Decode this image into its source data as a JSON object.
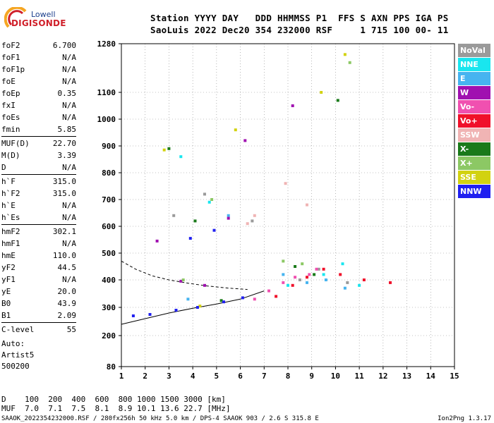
{
  "logo": {
    "top": "Lowell",
    "bottom": "DIGISONDE"
  },
  "header": {
    "line1": "Station YYYY DAY   DDD HHMMSS P1  FFS S AXN PPS IGA PS",
    "line2": "SaoLuis 2022 Dec20 354 232000 RSF     1 715 100 00- 11"
  },
  "params": [
    {
      "name": "foF2",
      "value": "6.700"
    },
    {
      "name": "foF1",
      "value": "N/A"
    },
    {
      "name": "foF1p",
      "value": "N/A"
    },
    {
      "name": "foE",
      "value": "N/A"
    },
    {
      "name": "foEp",
      "value": "0.35"
    },
    {
      "name": "fxI",
      "value": "N/A"
    },
    {
      "name": "foEs",
      "value": "N/A"
    },
    {
      "name": "fmin",
      "value": "5.85"
    },
    {
      "divider": true
    },
    {
      "name": "MUF(D)",
      "value": "22.70"
    },
    {
      "name": "M(D)",
      "value": "3.39"
    },
    {
      "name": "D",
      "value": "N/A"
    },
    {
      "divider": true
    },
    {
      "name": "h`F",
      "value": "315.0"
    },
    {
      "name": "h`F2",
      "value": "315.0"
    },
    {
      "name": "h`E",
      "value": "N/A"
    },
    {
      "name": "h`Es",
      "value": "N/A"
    },
    {
      "divider": true
    },
    {
      "name": "hmF2",
      "value": "302.1"
    },
    {
      "name": "hmF1",
      "value": "N/A"
    },
    {
      "name": "hmE",
      "value": "110.0"
    },
    {
      "name": "yF2",
      "value": "44.5"
    },
    {
      "name": "yF1",
      "value": "N/A"
    },
    {
      "name": "yE",
      "value": "20.0"
    },
    {
      "name": "B0",
      "value": "43.9"
    },
    {
      "name": "B1",
      "value": "2.09"
    },
    {
      "divider": true
    },
    {
      "name": "C-level",
      "value": "55"
    }
  ],
  "auto": {
    "line1": "Auto:",
    "line2": "Artist5",
    "line3": "500200"
  },
  "legend": [
    {
      "label": "NoVal",
      "color": "#9a9a9a"
    },
    {
      "label": "NNE",
      "color": "#19e6ef"
    },
    {
      "label": "E",
      "color": "#46b4f0"
    },
    {
      "label": "W",
      "color": "#a010b0"
    },
    {
      "label": "Vo-",
      "color": "#f050b0"
    },
    {
      "label": "Vo+",
      "color": "#f0102a"
    },
    {
      "label": "SSW",
      "color": "#f0b4b4"
    },
    {
      "label": "X-",
      "color": "#1a7a1a"
    },
    {
      "label": "X+",
      "color": "#8cc864"
    },
    {
      "label": "SSE",
      "color": "#d2d210"
    },
    {
      "label": "NNW",
      "color": "#2020f0"
    }
  ],
  "muf_table": {
    "line1": "D    100  200  400  600  800 1000 1500 3000 [km]",
    "line2": "MUF  7.0  7.1  7.5  8.1  8.9 10.1 13.6 22.7 [MHz]"
  },
  "footer": "SAAOK_2022354232000.RSF / 280fx256h 50 kHz 5.0 km / DPS-4 SAAOK 903 / 2.6 S 315.8 E",
  "version": "Ion2Png 1.3.17",
  "chart_data": {
    "type": "scatter",
    "x_ticks": [
      "1",
      "2",
      "3",
      "4",
      "5",
      "6",
      "7",
      "8",
      "9",
      "10",
      "11",
      "12",
      "13",
      "14",
      "15"
    ],
    "y_ticks": [
      "80",
      "200",
      "300",
      "400",
      "500",
      "600",
      "700",
      "800",
      "900",
      "1000",
      "1100",
      "1280"
    ],
    "xlim": [
      1,
      15
    ],
    "ylim": [
      80,
      1280
    ],
    "grid": true,
    "series": [
      {
        "name": "NoVal",
        "color": "#9a9a9a",
        "points": [
          [
            3.2,
            640
          ],
          [
            4.5,
            720
          ],
          [
            6.5,
            620
          ],
          [
            8.5,
            400
          ],
          [
            9.3,
            440
          ],
          [
            10.5,
            390
          ]
        ]
      },
      {
        "name": "NNE",
        "color": "#19e6ef",
        "points": [
          [
            3.5,
            860
          ],
          [
            4.7,
            690
          ],
          [
            8.0,
            380
          ],
          [
            9.5,
            420
          ],
          [
            10.3,
            460
          ],
          [
            11.0,
            380
          ]
        ]
      },
      {
        "name": "E",
        "color": "#46b4f0",
        "points": [
          [
            3.8,
            330
          ],
          [
            5.5,
            640
          ],
          [
            7.8,
            420
          ],
          [
            8.8,
            390
          ],
          [
            9.6,
            400
          ],
          [
            10.4,
            370
          ]
        ]
      },
      {
        "name": "W",
        "color": "#a010b0",
        "points": [
          [
            2.5,
            545
          ],
          [
            3.5,
            395
          ],
          [
            4.5,
            380
          ],
          [
            5.5,
            630
          ],
          [
            6.2,
            920
          ],
          [
            8.2,
            1050
          ]
        ]
      },
      {
        "name": "Vo-",
        "color": "#f050b0",
        "points": [
          [
            6.6,
            330
          ],
          [
            7.2,
            360
          ],
          [
            7.8,
            390
          ],
          [
            8.3,
            410
          ],
          [
            8.9,
            420
          ],
          [
            9.2,
            440
          ]
        ]
      },
      {
        "name": "Vo+",
        "color": "#f0102a",
        "points": [
          [
            7.5,
            340
          ],
          [
            8.2,
            380
          ],
          [
            8.8,
            410
          ],
          [
            9.5,
            440
          ],
          [
            10.2,
            420
          ],
          [
            11.2,
            400
          ],
          [
            12.3,
            390
          ]
        ]
      },
      {
        "name": "SSW",
        "color": "#f0b4b4",
        "points": [
          [
            6.3,
            610
          ],
          [
            6.6,
            640
          ],
          [
            7.9,
            760
          ],
          [
            8.8,
            680
          ]
        ]
      },
      {
        "name": "X-",
        "color": "#1a7a1a",
        "points": [
          [
            3.0,
            890
          ],
          [
            4.1,
            620
          ],
          [
            5.2,
            325
          ],
          [
            8.3,
            450
          ],
          [
            9.1,
            420
          ],
          [
            10.1,
            1070
          ]
        ]
      },
      {
        "name": "X+",
        "color": "#8cc864",
        "points": [
          [
            3.6,
            400
          ],
          [
            4.8,
            700
          ],
          [
            7.8,
            470
          ],
          [
            8.6,
            460
          ],
          [
            10.6,
            1210
          ]
        ]
      },
      {
        "name": "SSE",
        "color": "#d2d210",
        "points": [
          [
            2.8,
            885
          ],
          [
            4.3,
            305
          ],
          [
            5.8,
            960
          ],
          [
            9.4,
            1100
          ],
          [
            10.4,
            1240
          ]
        ]
      },
      {
        "name": "NNW",
        "color": "#2020f0",
        "points": [
          [
            1.5,
            270
          ],
          [
            2.2,
            275
          ],
          [
            3.3,
            290
          ],
          [
            4.2,
            300
          ],
          [
            5.3,
            320
          ],
          [
            6.1,
            335
          ],
          [
            3.9,
            555
          ],
          [
            4.9,
            585
          ]
        ]
      }
    ],
    "traces": [
      {
        "kind": "solid",
        "points": [
          [
            1,
            240
          ],
          [
            2,
            260
          ],
          [
            3,
            280
          ],
          [
            4,
            297
          ],
          [
            5,
            312
          ],
          [
            6,
            330
          ],
          [
            7,
            360
          ]
        ]
      },
      {
        "kind": "dashed",
        "points": [
          [
            1,
            470
          ],
          [
            1.6,
            440
          ],
          [
            2.3,
            415
          ],
          [
            3.0,
            400
          ],
          [
            3.8,
            388
          ],
          [
            4.6,
            378
          ],
          [
            5.5,
            370
          ],
          [
            6.3,
            365
          ]
        ]
      }
    ]
  }
}
